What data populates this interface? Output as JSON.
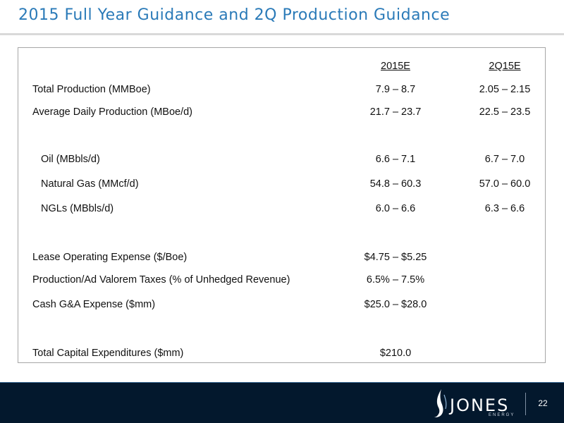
{
  "title": "2015 Full Year Guidance and 2Q Production Guidance",
  "table": {
    "headers": [
      "2015E",
      "2Q15E"
    ],
    "rows": [
      {
        "label": "Total Production (MMBoe)",
        "c1": "7.9 – 8.7",
        "c2": "2.05 – 2.15"
      },
      {
        "label": "Average Daily Production (MBoe/d)",
        "c1": "21.7 – 23.7",
        "c2": "22.5 – 23.5"
      },
      {
        "label": "Oil (MBbls/d)",
        "c1": "6.6 – 7.1",
        "c2": "6.7 – 7.0"
      },
      {
        "label": "Natural Gas (MMcf/d)",
        "c1": "54.8 – 60.3",
        "c2": "57.0 – 60.0"
      },
      {
        "label": "NGLs (MBbls/d)",
        "c1": "6.0 – 6.6",
        "c2": "6.3 – 6.6"
      },
      {
        "label": "Lease Operating Expense ($/Boe)",
        "c1": "$4.75 – $5.25",
        "c2": ""
      },
      {
        "label": "Production/Ad Valorem Taxes (% of Unhedged Revenue)",
        "c1": "6.5% – 7.5%",
        "c2": ""
      },
      {
        "label": "Cash G&A Expense ($mm)",
        "c1": "$25.0 – $28.0",
        "c2": ""
      },
      {
        "label": "Total Capital Expenditures ($mm)",
        "c1": "$210.0",
        "c2": ""
      }
    ]
  },
  "footer": {
    "logo_text": "JONES",
    "logo_subtext": "ENERGY",
    "page_number": "22"
  }
}
